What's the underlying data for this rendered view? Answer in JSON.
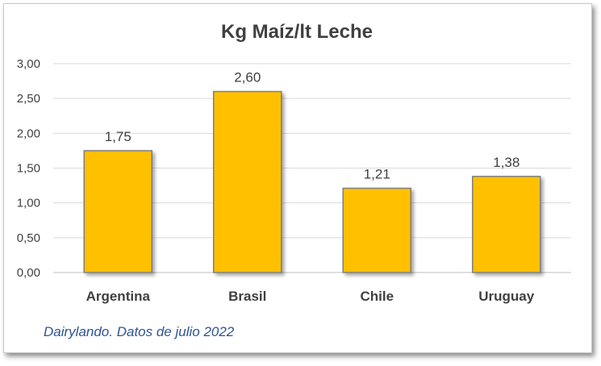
{
  "chart_data": {
    "type": "bar",
    "title": "Kg Maíz/lt Leche",
    "categories": [
      "Argentina",
      "Brasil",
      "Chile",
      "Uruguay"
    ],
    "values": [
      1.75,
      2.6,
      1.21,
      1.38
    ],
    "data_labels": [
      "1,75",
      "2,60",
      "1,21",
      "1,38"
    ],
    "y_ticks": [
      "0,00",
      "0,50",
      "1,00",
      "1,50",
      "2,00",
      "2,50",
      "3,00"
    ],
    "ylim": [
      0,
      3
    ],
    "grid": true,
    "legend": "none",
    "bar_color": "#ffc000",
    "bar_border_color": "#7f7f7f",
    "source_note": "Dairylando. Datos de julio 2022"
  }
}
